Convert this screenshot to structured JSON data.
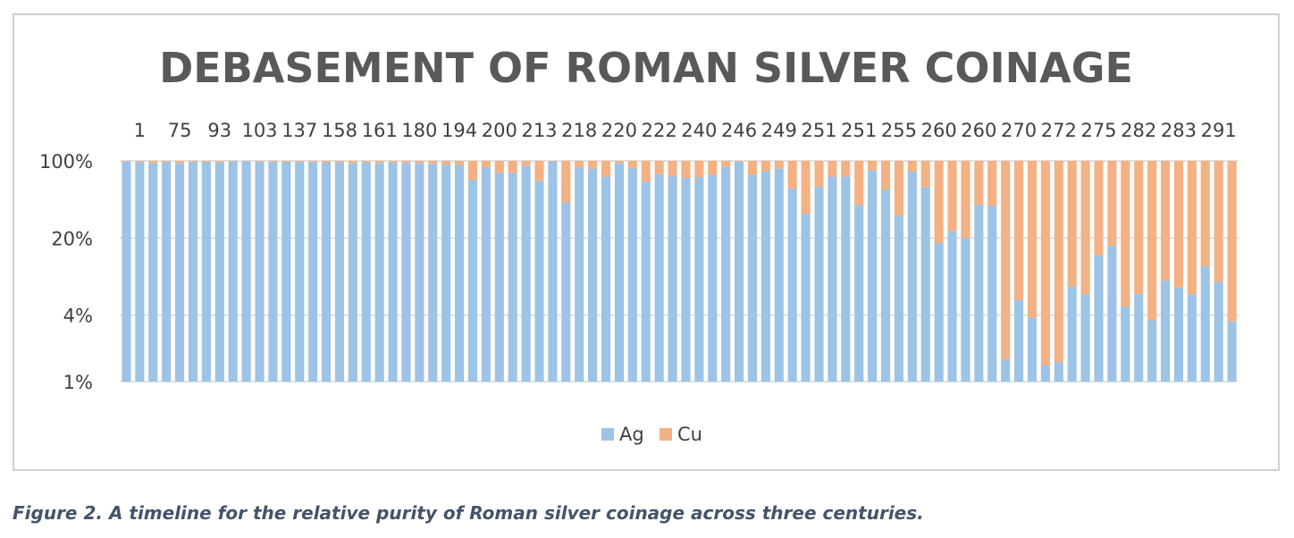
{
  "figure": {
    "caption": "Figure 2. A timeline for the relative purity of Roman silver coinage across three centuries."
  },
  "chart_data": {
    "type": "bar",
    "stacked": true,
    "title": "DEBASEMENT OF ROMAN SILVER COINAGE",
    "x_axis_position": "top",
    "x_tick_labels": [
      "1",
      "75",
      "93",
      "103",
      "137",
      "158",
      "161",
      "180",
      "194",
      "200",
      "213",
      "218",
      "220",
      "222",
      "240",
      "246",
      "249",
      "251",
      "251",
      "255",
      "260",
      "260",
      "270",
      "272",
      "275",
      "282",
      "283",
      "291"
    ],
    "y_scale": "log",
    "y_ticks": [
      "100%",
      "20%",
      "4%",
      "1%"
    ],
    "ylim": [
      1,
      100
    ],
    "grid": true,
    "legend": {
      "position": "bottom",
      "entries": [
        "Ag",
        "Cu"
      ]
    },
    "colors": {
      "Ag": "#9dc3e6",
      "Cu": "#f4b183",
      "gridline": "#d9d9d9"
    },
    "series": [
      {
        "name": "Ag",
        "values": [
          99,
          98,
          95,
          98,
          96,
          98,
          98,
          97,
          99,
          99,
          98,
          98,
          98,
          98,
          98,
          97,
          97,
          95,
          97,
          96,
          97,
          96,
          95,
          94,
          92,
          92,
          67,
          87,
          78,
          78,
          90,
          66,
          99,
          42,
          87,
          85,
          72,
          95,
          86,
          65,
          76,
          73,
          70,
          71,
          75,
          88,
          98,
          75,
          80,
          85,
          56,
          33,
          58,
          72,
          72,
          40,
          82,
          55,
          32,
          80,
          58,
          18,
          23,
          20,
          40,
          39,
          1.6,
          5.5,
          3.8,
          1.4,
          1.5,
          7.3,
          6.2,
          14,
          17,
          4.8,
          6.2,
          3.6,
          8.2,
          7.1,
          6.2,
          11,
          8,
          3.5
        ]
      },
      {
        "name": "Cu",
        "values": [
          1,
          2,
          5,
          2,
          4,
          2,
          2,
          3,
          1,
          1,
          2,
          2,
          2,
          2,
          2,
          3,
          3,
          5,
          3,
          4,
          3,
          4,
          5,
          6,
          8,
          8,
          33,
          13,
          22,
          22,
          10,
          34,
          1,
          58,
          13,
          15,
          28,
          5,
          14,
          35,
          24,
          27,
          30,
          29,
          25,
          12,
          2,
          25,
          20,
          15,
          44,
          67,
          42,
          28,
          28,
          60,
          18,
          45,
          68,
          20,
          42,
          82,
          77,
          80,
          60,
          61,
          98.4,
          94.5,
          96.2,
          98.6,
          98.5,
          92.7,
          93.8,
          86,
          83,
          95.2,
          93.8,
          96.4,
          91.8,
          92.9,
          93.8,
          89,
          92,
          96.5
        ]
      }
    ],
    "series_totals": [
      100,
      100,
      100,
      100,
      100,
      100,
      100,
      100,
      100,
      100,
      100,
      100,
      100,
      100,
      100,
      100,
      100,
      100,
      100,
      100,
      100,
      100,
      100,
      100,
      100,
      100,
      100,
      100,
      100,
      100,
      100,
      100,
      100,
      100,
      100,
      100,
      100,
      100,
      100,
      100,
      100,
      100,
      100,
      100,
      100,
      100,
      100,
      100,
      100,
      100,
      100,
      100,
      100,
      100,
      100,
      100,
      100,
      100,
      100,
      100,
      100,
      100,
      100,
      100,
      100,
      100,
      100,
      100,
      100,
      100,
      100,
      100,
      100,
      100,
      100,
      100,
      100,
      100,
      100,
      100,
      100,
      100,
      100,
      100
    ]
  }
}
